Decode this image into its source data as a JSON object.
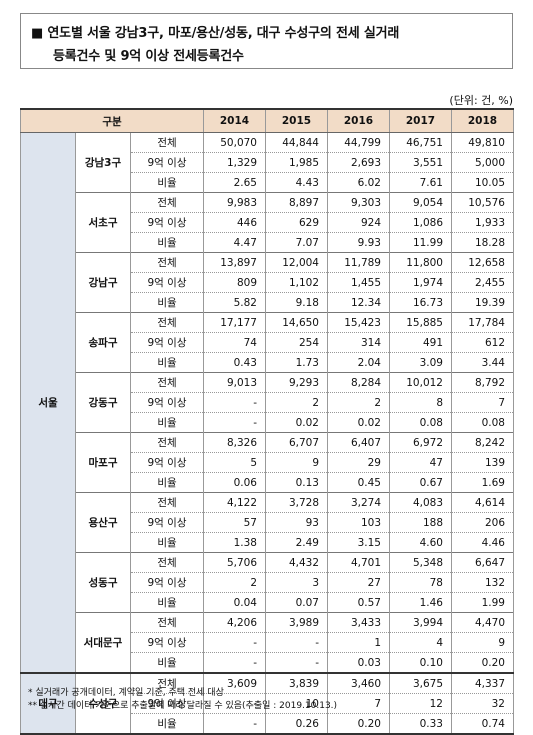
{
  "title": {
    "bullet": "■",
    "line1": "연도별 서울 강남3구, 마포/용산/성동, 대구 수성구의 전세 실거래",
    "line2": "등록건수 및 9억 이상 전세등록건수"
  },
  "unit": "(단위: 건, %)",
  "header": {
    "label": "구분",
    "years": [
      "2014",
      "2015",
      "2016",
      "2017",
      "2018"
    ]
  },
  "row_labels": [
    "전체",
    "9억 이상",
    "비율"
  ],
  "regions": [
    {
      "name": "서울",
      "districts": [
        {
          "name": "강남3구",
          "total": [
            "50,070",
            "44,844",
            "44,799",
            "46,751",
            "49,810"
          ],
          "over9": [
            "1,329",
            "1,985",
            "2,693",
            "3,551",
            "5,000"
          ],
          "ratio": [
            "2.65",
            "4.43",
            "6.02",
            "7.61",
            "10.05"
          ]
        },
        {
          "name": "서초구",
          "total": [
            "9,983",
            "8,897",
            "9,303",
            "9,054",
            "10,576"
          ],
          "over9": [
            "446",
            "629",
            "924",
            "1,086",
            "1,933"
          ],
          "ratio": [
            "4.47",
            "7.07",
            "9.93",
            "11.99",
            "18.28"
          ]
        },
        {
          "name": "강남구",
          "total": [
            "13,897",
            "12,004",
            "11,789",
            "11,800",
            "12,658"
          ],
          "over9": [
            "809",
            "1,102",
            "1,455",
            "1,974",
            "2,455"
          ],
          "ratio": [
            "5.82",
            "9.18",
            "12.34",
            "16.73",
            "19.39"
          ]
        },
        {
          "name": "송파구",
          "total": [
            "17,177",
            "14,650",
            "15,423",
            "15,885",
            "17,784"
          ],
          "over9": [
            "74",
            "254",
            "314",
            "491",
            "612"
          ],
          "ratio": [
            "0.43",
            "1.73",
            "2.04",
            "3.09",
            "3.44"
          ]
        },
        {
          "name": "강동구",
          "total": [
            "9,013",
            "9,293",
            "8,284",
            "10,012",
            "8,792"
          ],
          "over9": [
            "-",
            "2",
            "2",
            "8",
            "7"
          ],
          "ratio": [
            "-",
            "0.02",
            "0.02",
            "0.08",
            "0.08"
          ]
        },
        {
          "name": "마포구",
          "total": [
            "8,326",
            "6,707",
            "6,407",
            "6,972",
            "8,242"
          ],
          "over9": [
            "5",
            "9",
            "29",
            "47",
            "139"
          ],
          "ratio": [
            "0.06",
            "0.13",
            "0.45",
            "0.67",
            "1.69"
          ]
        },
        {
          "name": "용산구",
          "total": [
            "4,122",
            "3,728",
            "3,274",
            "4,083",
            "4,614"
          ],
          "over9": [
            "57",
            "93",
            "103",
            "188",
            "206"
          ],
          "ratio": [
            "1.38",
            "2.49",
            "3.15",
            "4.60",
            "4.46"
          ]
        },
        {
          "name": "성동구",
          "total": [
            "5,706",
            "4,432",
            "4,701",
            "5,348",
            "6,647"
          ],
          "over9": [
            "2",
            "3",
            "27",
            "78",
            "132"
          ],
          "ratio": [
            "0.04",
            "0.07",
            "0.57",
            "1.46",
            "1.99"
          ]
        },
        {
          "name": "서대문구",
          "total": [
            "4,206",
            "3,989",
            "3,433",
            "3,994",
            "4,470"
          ],
          "over9": [
            "-",
            "-",
            "1",
            "4",
            "9"
          ],
          "ratio": [
            "-",
            "-",
            "0.03",
            "0.10",
            "0.20"
          ]
        }
      ]
    },
    {
      "name": "대구",
      "districts": [
        {
          "name": "수성구",
          "total": [
            "3,609",
            "3,839",
            "3,460",
            "3,675",
            "4,337"
          ],
          "over9": [
            "-",
            "10",
            "7",
            "12",
            "32"
          ],
          "ratio": [
            "-",
            "0.26",
            "0.20",
            "0.33",
            "0.74"
          ]
        }
      ]
    }
  ],
  "notes": [
    "* 실거래가 공개데이터, 계약일 기준, 주택 전세 대상",
    "** 실시간 데이터 기준으로 추출일에 따라 달라질 수 있음(추출일 : 2019.10.13.)"
  ]
}
